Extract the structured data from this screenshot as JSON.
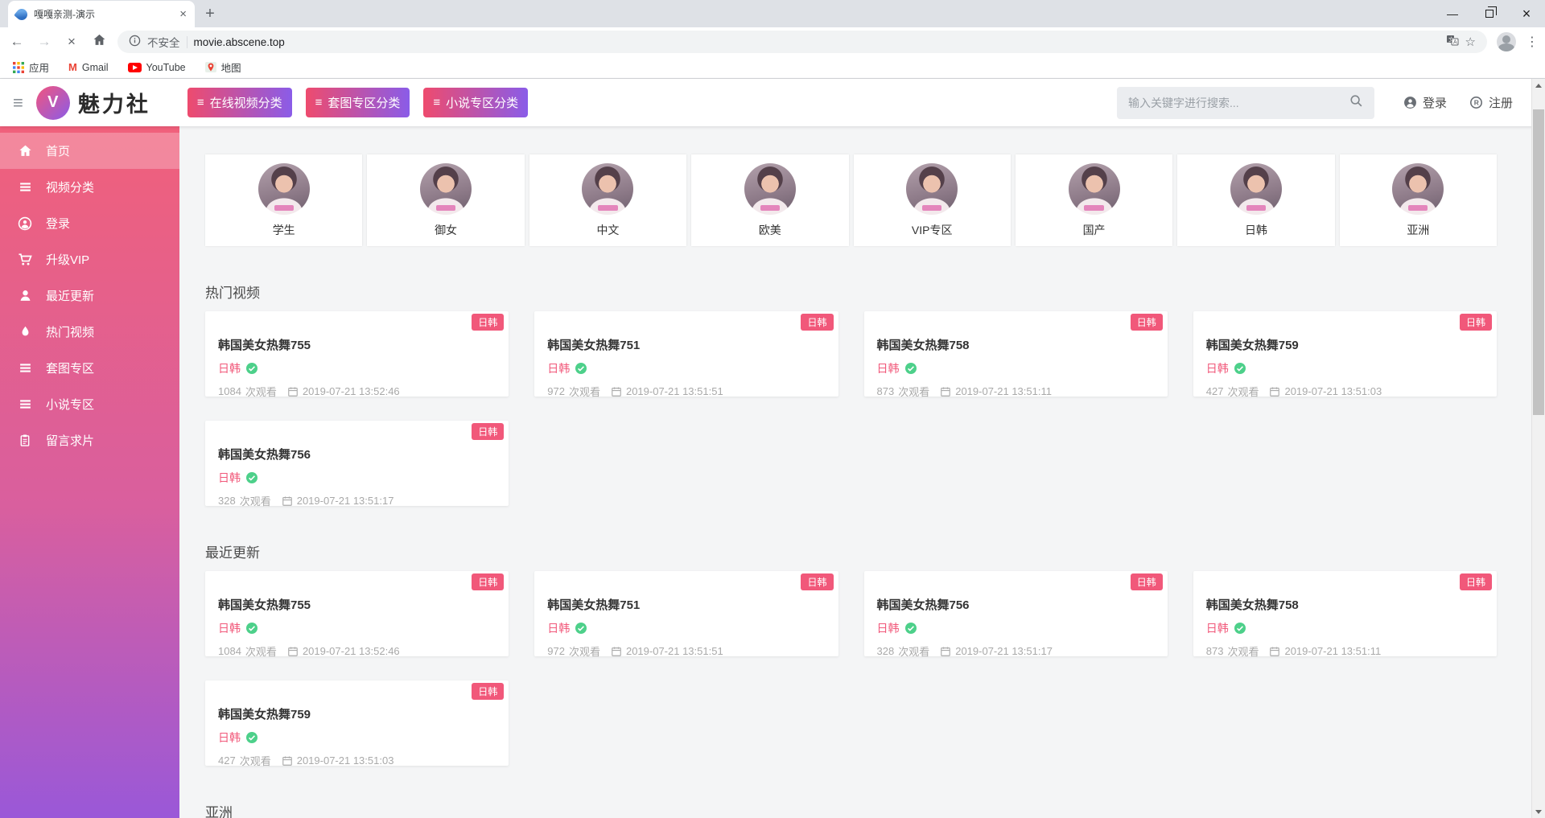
{
  "browser": {
    "tab_title": "嘎嘎亲测-演示",
    "security_label": "不安全",
    "url": "movie.abscene.top",
    "bookmarks": [
      {
        "label": "应用",
        "icon": "apps-grid-icon"
      },
      {
        "label": "Gmail",
        "icon": "gmail-icon"
      },
      {
        "label": "YouTube",
        "icon": "youtube-icon"
      },
      {
        "label": "地图",
        "icon": "maps-icon"
      }
    ]
  },
  "header": {
    "logo_letter": "V",
    "logo_text": "魅力社",
    "nav_buttons": [
      {
        "label": "在线视频分类"
      },
      {
        "label": "套图专区分类"
      },
      {
        "label": "小说专区分类"
      }
    ],
    "search_placeholder": "输入关键字进行搜索...",
    "login_label": "登录",
    "register_label": "注册"
  },
  "sidebar": {
    "items": [
      {
        "label": "首页",
        "icon": "home-icon",
        "active": true
      },
      {
        "label": "视频分类",
        "icon": "list-icon",
        "active": false
      },
      {
        "label": "登录",
        "icon": "user-circle-icon",
        "active": false
      },
      {
        "label": "升级VIP",
        "icon": "cart-icon",
        "active": false
      },
      {
        "label": "最近更新",
        "icon": "user-icon",
        "active": false
      },
      {
        "label": "热门视频",
        "icon": "flame-icon",
        "active": false
      },
      {
        "label": "套图专区",
        "icon": "list-icon",
        "active": false
      },
      {
        "label": "小说专区",
        "icon": "list-icon",
        "active": false
      },
      {
        "label": "留言求片",
        "icon": "clipboard-icon",
        "active": false
      }
    ]
  },
  "categories": [
    {
      "label": "学生"
    },
    {
      "label": "御女"
    },
    {
      "label": "中文"
    },
    {
      "label": "欧美"
    },
    {
      "label": "VIP专区"
    },
    {
      "label": "国产"
    },
    {
      "label": "日韩"
    },
    {
      "label": "亚洲"
    }
  ],
  "video_meta": {
    "views_suffix": "次观看"
  },
  "sections": [
    {
      "title": "热门视频",
      "videos": [
        {
          "title": "韩国美女热舞755",
          "badge": "日韩",
          "tag": "日韩",
          "views": "1084",
          "date": "2019-07-21 13:52:46"
        },
        {
          "title": "韩国美女热舞751",
          "badge": "日韩",
          "tag": "日韩",
          "views": "972",
          "date": "2019-07-21 13:51:51"
        },
        {
          "title": "韩国美女热舞758",
          "badge": "日韩",
          "tag": "日韩",
          "views": "873",
          "date": "2019-07-21 13:51:11"
        },
        {
          "title": "韩国美女热舞759",
          "badge": "日韩",
          "tag": "日韩",
          "views": "427",
          "date": "2019-07-21 13:51:03"
        },
        {
          "title": "韩国美女热舞756",
          "badge": "日韩",
          "tag": "日韩",
          "views": "328",
          "date": "2019-07-21 13:51:17"
        }
      ]
    },
    {
      "title": "最近更新",
      "videos": [
        {
          "title": "韩国美女热舞755",
          "badge": "日韩",
          "tag": "日韩",
          "views": "1084",
          "date": "2019-07-21 13:52:46"
        },
        {
          "title": "韩国美女热舞751",
          "badge": "日韩",
          "tag": "日韩",
          "views": "972",
          "date": "2019-07-21 13:51:51"
        },
        {
          "title": "韩国美女热舞756",
          "badge": "日韩",
          "tag": "日韩",
          "views": "328",
          "date": "2019-07-21 13:51:17"
        },
        {
          "title": "韩国美女热舞758",
          "badge": "日韩",
          "tag": "日韩",
          "views": "873",
          "date": "2019-07-21 13:51:11"
        },
        {
          "title": "韩国美女热舞759",
          "badge": "日韩",
          "tag": "日韩",
          "views": "427",
          "date": "2019-07-21 13:51:03"
        }
      ]
    },
    {
      "title": "亚洲",
      "videos": []
    }
  ],
  "colors": {
    "accent_pink": "#f1587a",
    "button_gradient_start": "#ee4b6e",
    "button_gradient_end": "#8a5ce8",
    "sidebar_gradient_top": "#f0607b",
    "sidebar_gradient_bottom": "#9a58d8",
    "check_green": "#4dd08a"
  }
}
